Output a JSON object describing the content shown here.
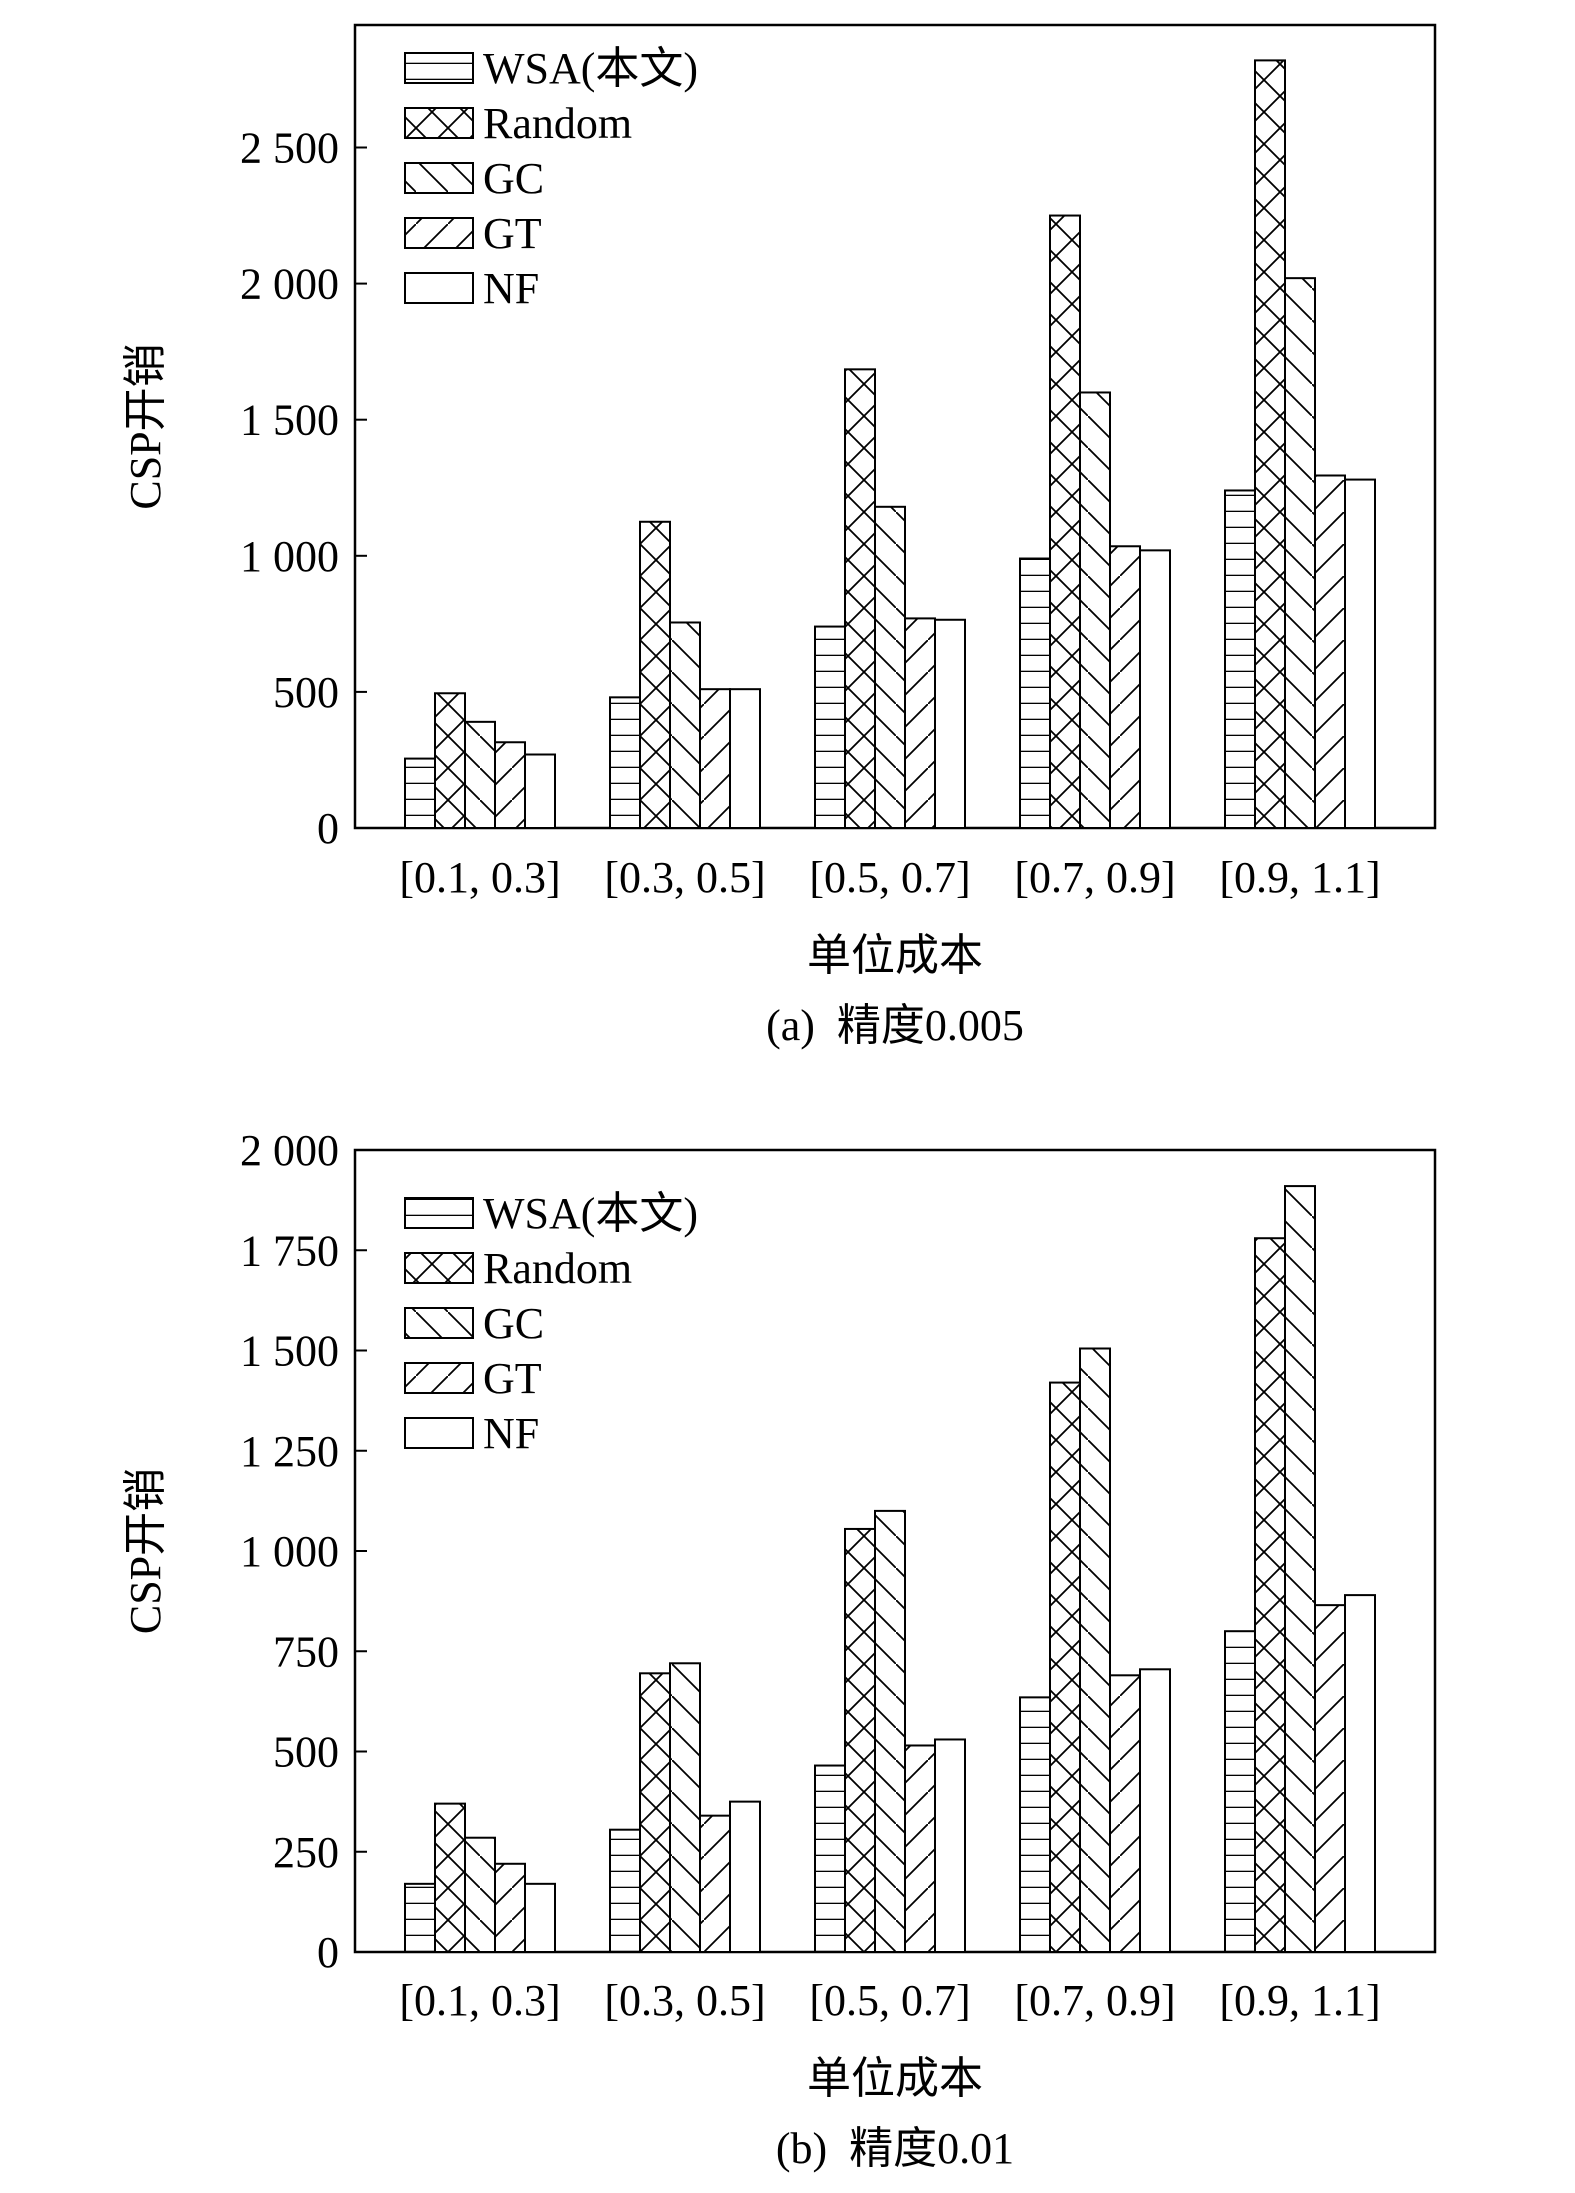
{
  "figure": {
    "legend": [
      {
        "name": "WSA(本文)",
        "pattern": "horizontal-lines"
      },
      {
        "name": "Random",
        "pattern": "cross-hatch"
      },
      {
        "name": "GC",
        "pattern": "back-diagonal"
      },
      {
        "name": "GT",
        "pattern": "forward-diagonal"
      },
      {
        "name": "NF",
        "pattern": "blank"
      }
    ]
  },
  "chart_data": [
    {
      "type": "bar",
      "caption": "(a)  精度0.005",
      "xlabel": "单位成本",
      "ylabel": "CSP开销",
      "categories": [
        "[0.1, 0.3]",
        "[0.3, 0.5]",
        "[0.5, 0.7]",
        "[0.7, 0.9]",
        "[0.9, 1.1]"
      ],
      "ylim": [
        0,
        2950
      ],
      "yticks": [
        0,
        500,
        1000,
        1500,
        2000,
        2500
      ],
      "ytick_labels": [
        "0",
        "500",
        "1 000",
        "1 500",
        "2 000",
        "2 500"
      ],
      "legend_position": "top-left",
      "series": [
        {
          "name": "WSA(本文)",
          "values": [
            255,
            480,
            740,
            990,
            1240
          ]
        },
        {
          "name": "Random",
          "values": [
            495,
            1125,
            1685,
            2250,
            2820
          ]
        },
        {
          "name": "GC",
          "values": [
            390,
            755,
            1180,
            1600,
            2020
          ]
        },
        {
          "name": "GT",
          "values": [
            315,
            510,
            770,
            1035,
            1295
          ]
        },
        {
          "name": "NF",
          "values": [
            270,
            510,
            765,
            1020,
            1280
          ]
        }
      ]
    },
    {
      "type": "bar",
      "caption": "(b)  精度0.01",
      "xlabel": "单位成本",
      "ylabel": "CSP开销",
      "categories": [
        "[0.1, 0.3]",
        "[0.3, 0.5]",
        "[0.5, 0.7]",
        "[0.7, 0.9]",
        "[0.9, 1.1]"
      ],
      "ylim": [
        0,
        2000
      ],
      "yticks": [
        0,
        250,
        500,
        750,
        1000,
        1250,
        1500,
        1750,
        2000
      ],
      "ytick_labels": [
        "0",
        "250",
        "500",
        "750",
        "1 000",
        "1 250",
        "1 500",
        "1 750",
        "2 000"
      ],
      "legend_position": "top-left",
      "series": [
        {
          "name": "WSA(本文)",
          "values": [
            170,
            305,
            465,
            635,
            800
          ]
        },
        {
          "name": "Random",
          "values": [
            370,
            695,
            1055,
            1420,
            1780
          ]
        },
        {
          "name": "GC",
          "values": [
            285,
            720,
            1100,
            1505,
            1910
          ]
        },
        {
          "name": "GT",
          "values": [
            220,
            340,
            515,
            690,
            865
          ]
        },
        {
          "name": "NF",
          "values": [
            170,
            375,
            530,
            705,
            890
          ]
        }
      ]
    }
  ]
}
